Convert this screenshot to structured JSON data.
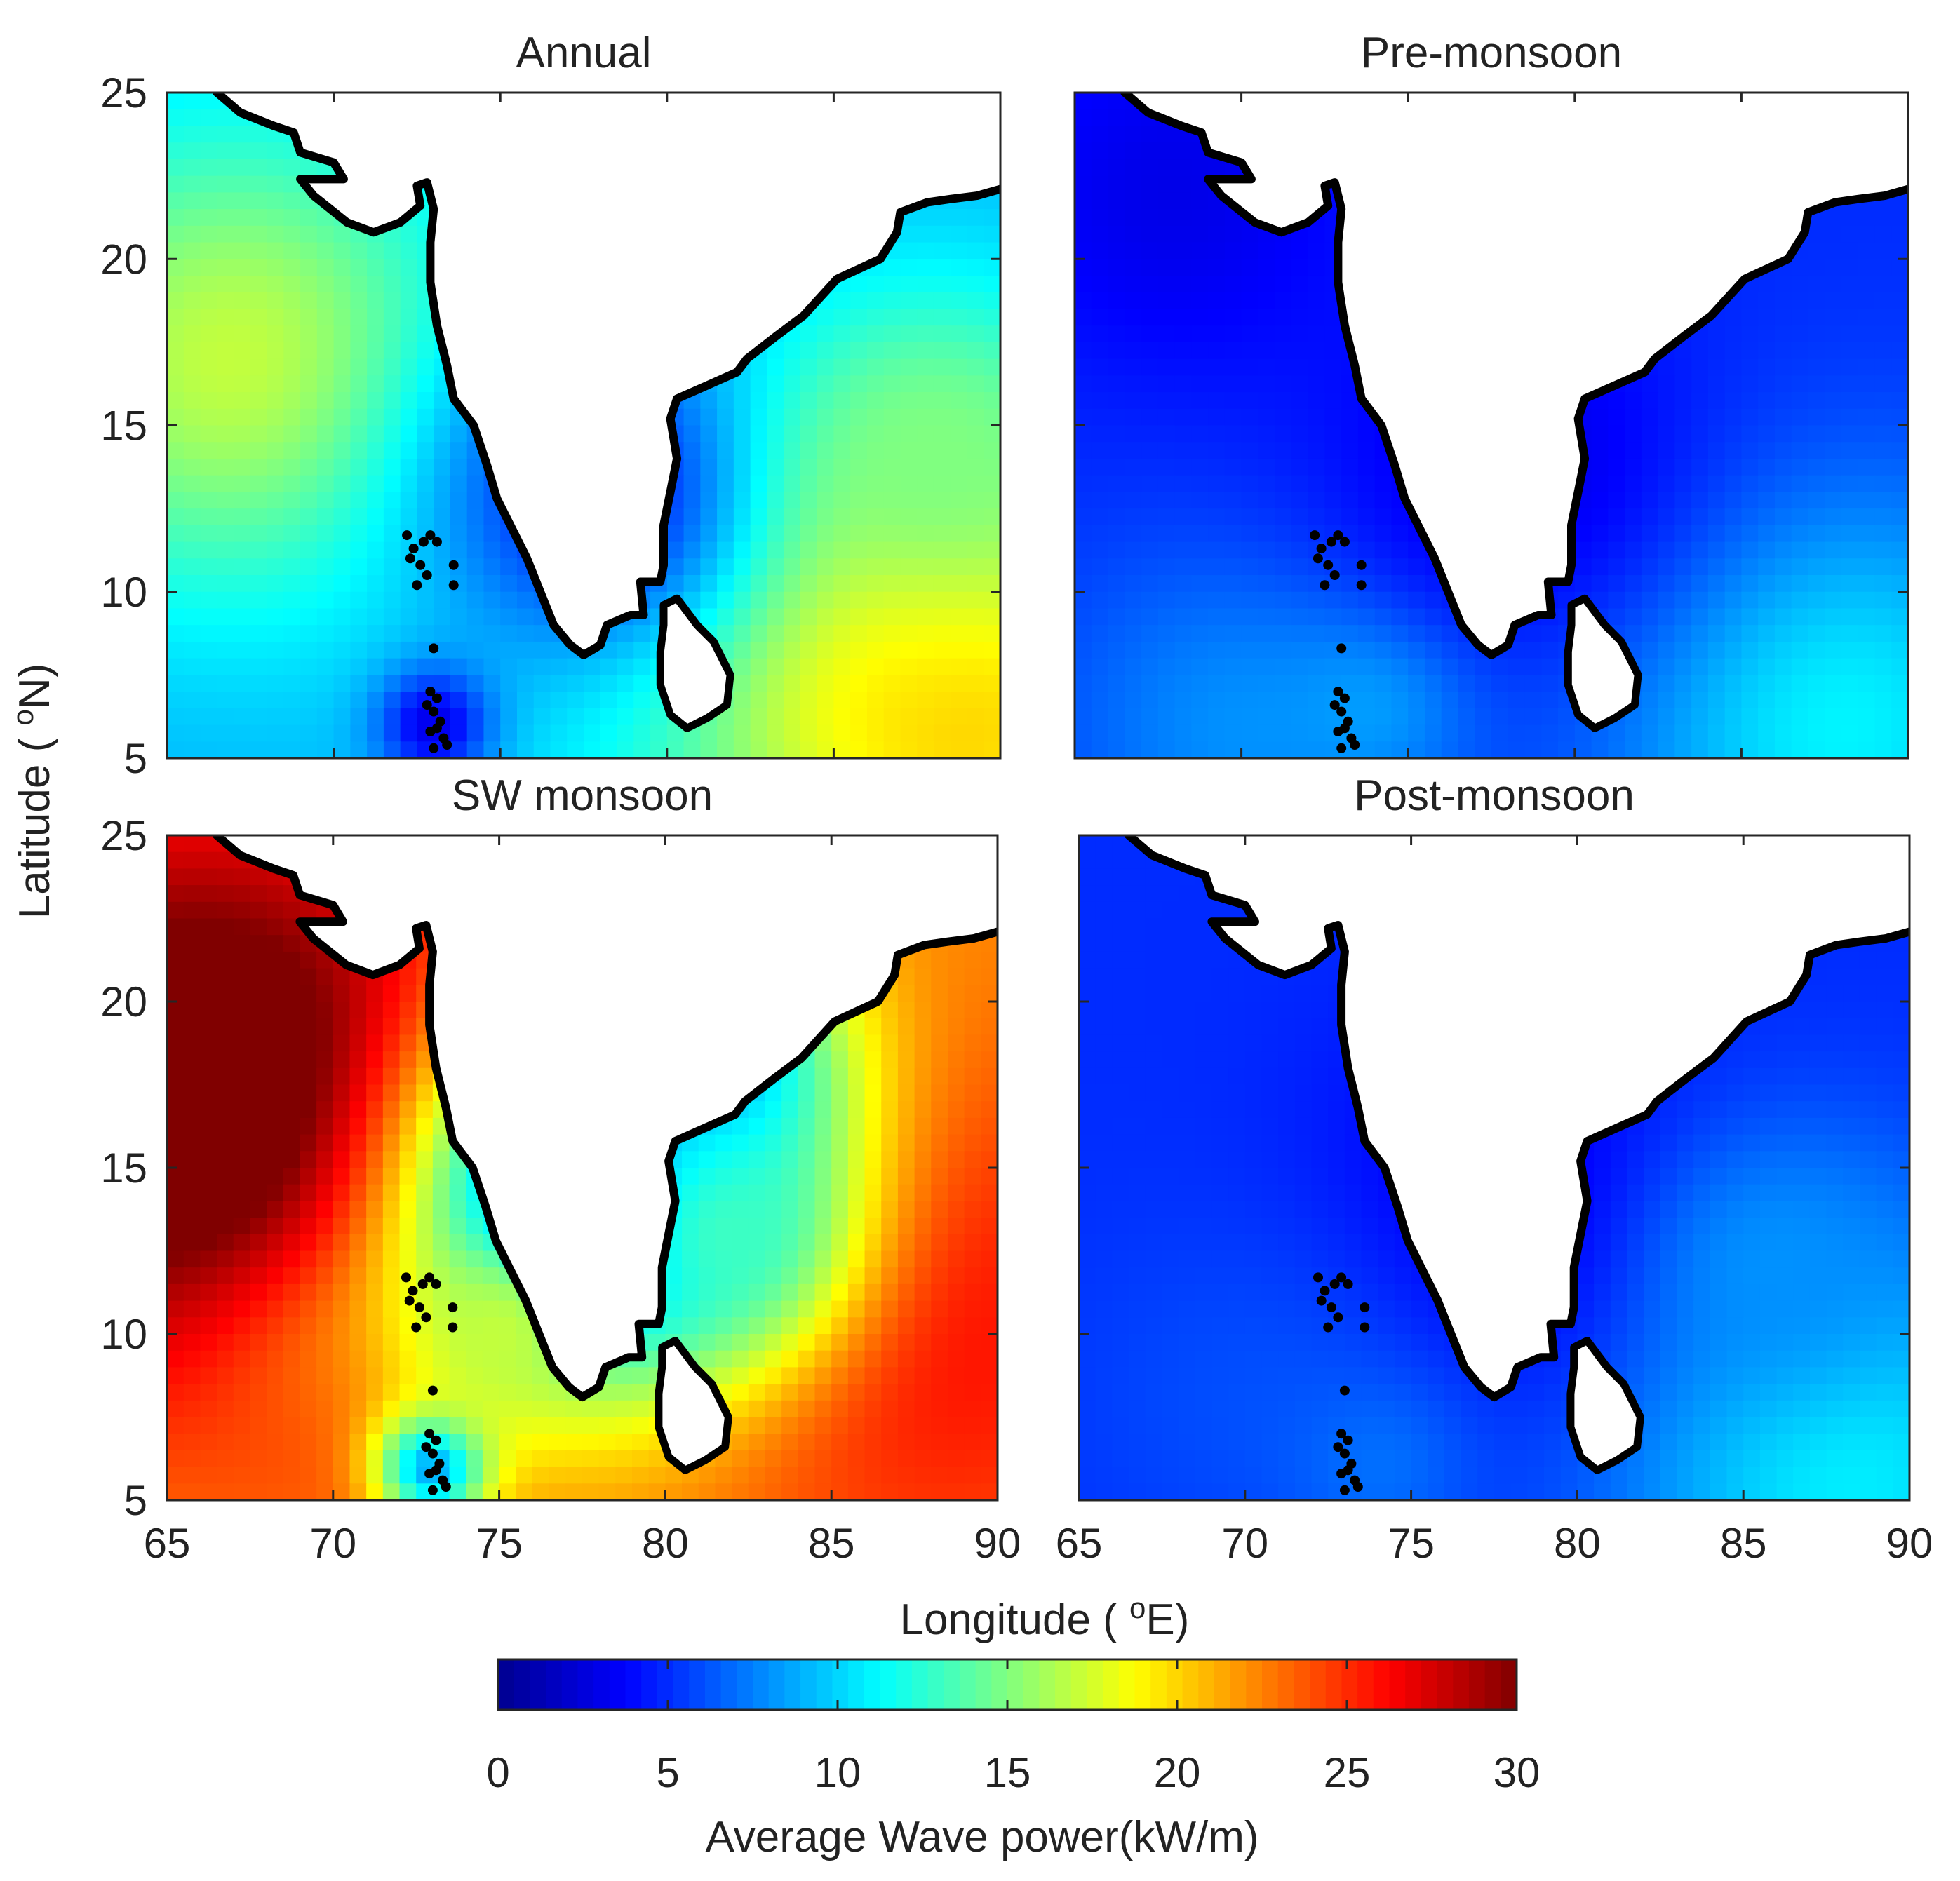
{
  "chart_data": {
    "type": "heatmap",
    "layout": "2x2 small multiples with shared colorbar",
    "xlabel": "Longitude ( °E)",
    "ylabel": "Latitude ( °N)",
    "xlim": [
      65,
      90
    ],
    "ylim": [
      5,
      25
    ],
    "xticks": [
      65,
      70,
      75,
      80,
      85,
      90
    ],
    "yticks": [
      5,
      10,
      15,
      20,
      25
    ],
    "grid": false,
    "colormap": "jet",
    "colorbar": {
      "label": "Average Wave power(kW/m)",
      "range": [
        0,
        30
      ],
      "ticks": [
        0,
        5,
        10,
        15,
        20,
        25,
        30
      ],
      "orientation": "horizontal",
      "placement": "bottom",
      "colors": [
        "#00008f",
        "#0000ff",
        "#0080ff",
        "#00ffff",
        "#80ff80",
        "#ffff00",
        "#ff8000",
        "#ff0000",
        "#800000"
      ]
    },
    "land_color": "#ffffff",
    "coastline_color": "#000000",
    "panels": [
      {
        "title": "Annual",
        "base_power": 9,
        "features": [
          {
            "lon": 67,
            "lat": 17,
            "radius": 5,
            "power": 17
          },
          {
            "lon": 87,
            "lat": 8,
            "radius": 6,
            "power": 19
          },
          {
            "lon": 89,
            "lat": 6,
            "radius": 3,
            "power": 20
          },
          {
            "lon": 78,
            "lat": 13,
            "radius": 3.5,
            "power": 4
          },
          {
            "lon": 73,
            "lat": 6,
            "radius": 1.2,
            "power": 3
          },
          {
            "lon": 88,
            "lat": 14,
            "radius": 3,
            "power": 15
          }
        ]
      },
      {
        "title": "Pre-monsoon",
        "base_power": 5,
        "features": [
          {
            "lon": 88,
            "lat": 6,
            "radius": 5,
            "power": 11
          },
          {
            "lon": 70,
            "lat": 6,
            "radius": 4,
            "power": 8
          },
          {
            "lon": 74,
            "lat": 7,
            "radius": 2,
            "power": 9
          },
          {
            "lon": 78,
            "lat": 14,
            "radius": 4,
            "power": 3
          },
          {
            "lon": 68,
            "lat": 22,
            "radius": 4,
            "power": 3
          }
        ]
      },
      {
        "title": "SW monsoon",
        "base_power": 22,
        "features": [
          {
            "lon": 66,
            "lat": 17,
            "radius": 6,
            "power": 34
          },
          {
            "lon": 70,
            "lat": 8,
            "radius": 3,
            "power": 24
          },
          {
            "lon": 88,
            "lat": 10,
            "radius": 6,
            "power": 26
          },
          {
            "lon": 78,
            "lat": 14,
            "radius": 4,
            "power": 3
          },
          {
            "lon": 81,
            "lat": 18,
            "radius": 3,
            "power": 8
          },
          {
            "lon": 73,
            "lat": 6,
            "radius": 1.2,
            "power": 8
          },
          {
            "lon": 75,
            "lat": 10,
            "radius": 2,
            "power": 17
          },
          {
            "lon": 82,
            "lat": 13,
            "radius": 2.5,
            "power": 13
          }
        ]
      },
      {
        "title": "Post-monsoon",
        "base_power": 5,
        "features": [
          {
            "lon": 88,
            "lat": 6,
            "radius": 5,
            "power": 11
          },
          {
            "lon": 78,
            "lat": 14,
            "radius": 4,
            "power": 3
          },
          {
            "lon": 70,
            "lat": 8,
            "radius": 4,
            "power": 6
          },
          {
            "lon": 74,
            "lat": 6,
            "radius": 2,
            "power": 7
          },
          {
            "lon": 86,
            "lat": 12,
            "radius": 3,
            "power": 8
          }
        ]
      }
    ],
    "coastline": {
      "west_coast": [
        [
          66.5,
          25
        ],
        [
          67.2,
          24.4
        ],
        [
          68.2,
          24.0
        ],
        [
          68.8,
          23.8
        ],
        [
          69.0,
          23.2
        ],
        [
          70.0,
          22.9
        ],
        [
          70.3,
          22.4
        ],
        [
          69.0,
          22.4
        ],
        [
          69.4,
          21.9
        ],
        [
          70.4,
          21.1
        ],
        [
          71.2,
          20.8
        ],
        [
          72.0,
          21.1
        ],
        [
          72.6,
          21.6
        ],
        [
          72.5,
          22.2
        ],
        [
          72.8,
          22.3
        ],
        [
          73.0,
          21.5
        ],
        [
          72.9,
          20.5
        ],
        [
          72.9,
          19.3
        ],
        [
          73.1,
          18.0
        ],
        [
          73.4,
          16.8
        ],
        [
          73.6,
          15.8
        ],
        [
          74.2,
          15.0
        ],
        [
          74.6,
          13.8
        ],
        [
          74.9,
          12.8
        ],
        [
          75.4,
          11.8
        ],
        [
          75.8,
          11.0
        ],
        [
          76.2,
          10.0
        ],
        [
          76.6,
          9.0
        ],
        [
          77.1,
          8.4
        ],
        [
          77.5,
          8.1
        ]
      ],
      "south_tip": [
        [
          77.5,
          8.1
        ],
        [
          78.0,
          8.4
        ],
        [
          78.2,
          9.0
        ],
        [
          78.9,
          9.3
        ],
        [
          79.3,
          9.3
        ],
        [
          79.2,
          10.3
        ],
        [
          79.8,
          10.3
        ]
      ],
      "east_coast": [
        [
          79.8,
          10.3
        ],
        [
          79.9,
          10.8
        ],
        [
          79.9,
          12.0
        ],
        [
          80.1,
          13.0
        ],
        [
          80.3,
          14.0
        ],
        [
          80.1,
          15.2
        ],
        [
          80.3,
          15.8
        ],
        [
          81.2,
          16.2
        ],
        [
          82.1,
          16.6
        ],
        [
          82.4,
          17.0
        ],
        [
          83.3,
          17.7
        ],
        [
          84.1,
          18.3
        ],
        [
          85.1,
          19.4
        ],
        [
          86.4,
          20.0
        ],
        [
          86.9,
          20.8
        ],
        [
          87.0,
          21.4
        ],
        [
          87.8,
          21.7
        ],
        [
          88.5,
          21.8
        ],
        [
          89.3,
          21.9
        ],
        [
          90.0,
          22.1
        ]
      ],
      "sri_lanka": [
        [
          79.9,
          9.6
        ],
        [
          80.3,
          9.8
        ],
        [
          80.9,
          9.0
        ],
        [
          81.4,
          8.5
        ],
        [
          81.9,
          7.5
        ],
        [
          81.8,
          6.6
        ],
        [
          81.2,
          6.2
        ],
        [
          80.6,
          5.9
        ],
        [
          80.1,
          6.3
        ],
        [
          79.8,
          7.2
        ],
        [
          79.8,
          8.2
        ],
        [
          79.9,
          9.0
        ]
      ],
      "island_dots": [
        [
          72.2,
          11.7
        ],
        [
          72.4,
          11.3
        ],
        [
          72.7,
          11.5
        ],
        [
          72.9,
          11.7
        ],
        [
          73.1,
          11.5
        ],
        [
          72.3,
          11.0
        ],
        [
          72.6,
          10.8
        ],
        [
          72.8,
          10.5
        ],
        [
          72.5,
          10.2
        ],
        [
          73.6,
          10.8
        ],
        [
          73.6,
          10.2
        ],
        [
          73.0,
          8.3
        ],
        [
          72.9,
          7.0
        ],
        [
          73.1,
          6.8
        ],
        [
          73.0,
          6.4
        ],
        [
          73.2,
          6.1
        ],
        [
          72.9,
          5.8
        ],
        [
          73.3,
          5.6
        ],
        [
          73.0,
          5.3
        ],
        [
          72.8,
          6.6
        ],
        [
          73.1,
          5.9
        ],
        [
          73.4,
          5.4
        ]
      ]
    }
  }
}
